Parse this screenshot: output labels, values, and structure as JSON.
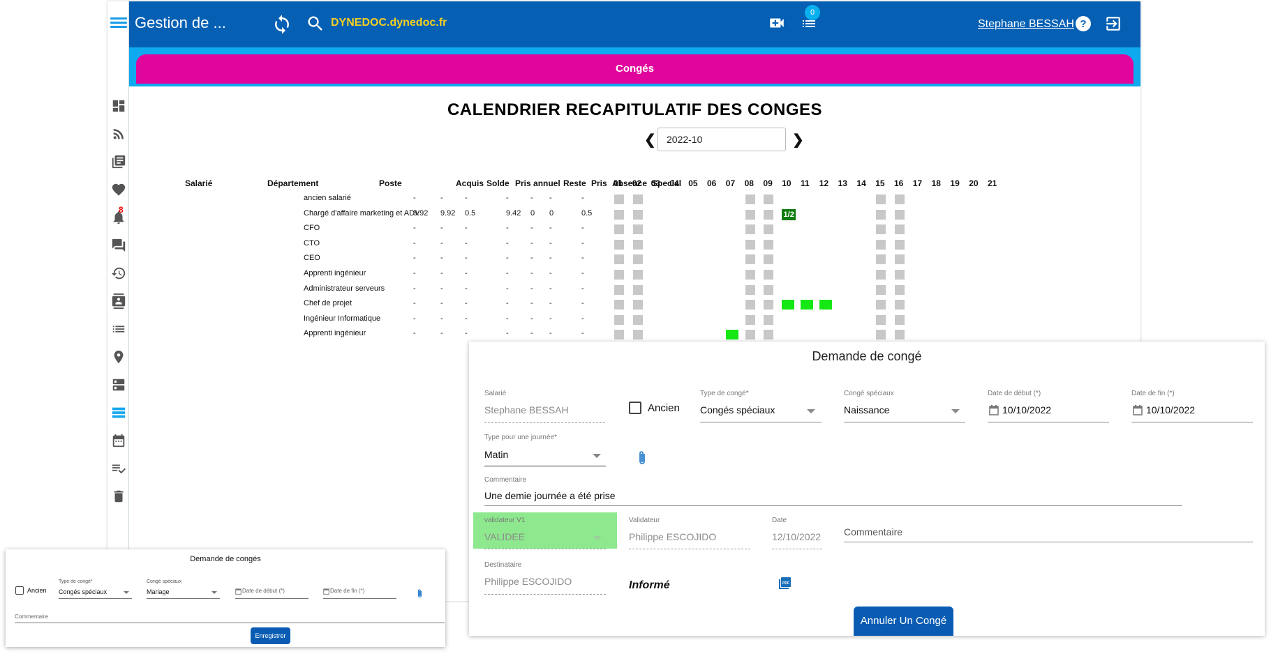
{
  "topbar": {
    "app_title": "Gestion de ...",
    "domain": "DYNEDOC.dynedoc.fr",
    "notification_count": "0",
    "user_name": "Stephane BESSAH"
  },
  "left_rail": {
    "notification_badge": "8",
    "icons": [
      "dashboard-icon",
      "rss-feed-icon",
      "library-books-icon",
      "heart-icon",
      "bell-icon",
      "forum-icon",
      "history-icon",
      "contact-card-icon",
      "list-icon",
      "location-pin-icon",
      "dns-server-icon",
      "storage-icon",
      "calendar-icon",
      "playlist-check-icon",
      "trash-icon"
    ],
    "active_icon": "storage-icon"
  },
  "conges_tab": "Congés",
  "calendar": {
    "title": "CALENDRIER RECAPITULATIF DES CONGES",
    "month": "2022-10",
    "headers": {
      "salarie": "Salarié",
      "departement": "Département",
      "poste": "Poste",
      "acquis": "Acquis",
      "solde": "Solde",
      "pris_annuel": "Pris annuel",
      "reste": "Reste",
      "pris": "Pris",
      "absence": "Absence",
      "special": "Special"
    },
    "days": [
      "01",
      "02",
      "03",
      "04",
      "05",
      "06",
      "07",
      "08",
      "09",
      "10",
      "11",
      "12",
      "13",
      "14",
      "15",
      "16",
      "17",
      "18",
      "19",
      "20",
      "21"
    ],
    "weekend_days": [
      "01",
      "02",
      "08",
      "09",
      "15",
      "16"
    ],
    "rows": [
      {
        "poste": "ancien salarié",
        "acquis": "-",
        "solde": "-",
        "pris_annuel": "-",
        "reste": "-",
        "pris": "-",
        "absence": "-",
        "special": "-",
        "leave": []
      },
      {
        "poste": "Chargé d'affaire marketing et ADV",
        "acquis": "9.92",
        "solde": "9.92",
        "pris_annuel": "0.5",
        "reste": "9.42",
        "pris": "0",
        "absence": "0",
        "special": "0.5",
        "leave": [
          {
            "day": "10",
            "kind": "half",
            "label": "1/2"
          }
        ]
      },
      {
        "poste": "CFO",
        "acquis": "-",
        "solde": "-",
        "pris_annuel": "-",
        "reste": "-",
        "pris": "-",
        "absence": "-",
        "special": "-",
        "leave": []
      },
      {
        "poste": "CTO",
        "acquis": "-",
        "solde": "-",
        "pris_annuel": "-",
        "reste": "-",
        "pris": "-",
        "absence": "-",
        "special": "-",
        "leave": []
      },
      {
        "poste": "CEO",
        "acquis": "-",
        "solde": "-",
        "pris_annuel": "-",
        "reste": "-",
        "pris": "-",
        "absence": "-",
        "special": "-",
        "leave": []
      },
      {
        "poste": "Apprenti ingénieur",
        "acquis": "-",
        "solde": "-",
        "pris_annuel": "-",
        "reste": "-",
        "pris": "-",
        "absence": "-",
        "special": "-",
        "leave": []
      },
      {
        "poste": "Administrateur serveurs",
        "acquis": "-",
        "solde": "-",
        "pris_annuel": "-",
        "reste": "-",
        "pris": "-",
        "absence": "-",
        "special": "-",
        "leave": []
      },
      {
        "poste": "Chef de projet",
        "acquis": "-",
        "solde": "-",
        "pris_annuel": "-",
        "reste": "-",
        "pris": "-",
        "absence": "-",
        "special": "-",
        "leave": [
          {
            "day": "10",
            "kind": "full"
          },
          {
            "day": "11",
            "kind": "full"
          },
          {
            "day": "12",
            "kind": "full"
          }
        ]
      },
      {
        "poste": "Ingénieur Informatique",
        "acquis": "-",
        "solde": "-",
        "pris_annuel": "-",
        "reste": "-",
        "pris": "-",
        "absence": "-",
        "special": "-",
        "leave": []
      },
      {
        "poste": "Apprenti ingénieur",
        "acquis": "-",
        "solde": "-",
        "pris_annuel": "-",
        "reste": "-",
        "pris": "-",
        "absence": "-",
        "special": "-",
        "leave": [
          {
            "day": "07",
            "kind": "full"
          }
        ]
      }
    ]
  },
  "demande_conge": {
    "title": "Demande de congé",
    "salarie_label": "Salarié",
    "salarie_value": "Stephane BESSAH",
    "ancien_label": "Ancien",
    "type_label": "Type de congé*",
    "type_value": "Congés spéciaux",
    "special_label": "Congé spéciaux",
    "special_value": "Naissance",
    "debut_label": "Date de début (*)",
    "debut_value": "10/10/2022",
    "fin_label": "Date de fin (*)",
    "fin_value": "10/10/2022",
    "journee_label": "Type pour une journée*",
    "journee_value": "Matin",
    "commentaire_label": "Commentaire",
    "commentaire_value": "Une demie journée a été prise",
    "validateur_v1_label": "validateur V1",
    "validateur_v1_value": "VALIDEE",
    "validateur_label": "Validateur",
    "validateur_value": "Philippe ESCOJIDO",
    "date_label": "Date",
    "date_value": "12/10/2022",
    "commentaire2_placeholder": "Commentaire",
    "destinataire_label": "Destinataire",
    "destinataire_value": "Philippe ESCOJIDO",
    "informe": "Informé",
    "annuler_button": "Annuler Un Congé",
    "validated_color": "#8ee88e"
  },
  "demande_conges_small": {
    "title": "Demande de congés",
    "ancien_label": "Ancien",
    "type_label": "Type de congé*",
    "type_value": "Congés spéciaux",
    "special_label": "Congé spéciaux",
    "special_value": "Mariage",
    "debut_placeholder": "Date de début (*)",
    "fin_placeholder": "Date de fin (*)",
    "commentaire_placeholder": "Commentaire",
    "save_button": "Enregistrer"
  },
  "colors": {
    "topbar": "#0560b4",
    "band": "#0ea9ee",
    "tab": "#e0059d",
    "domain_text": "#f5d020",
    "weekend_cell": "#c8c8c8",
    "leave_full": "#16e816",
    "leave_half": "#0f7d0f",
    "button": "#0a5cb3"
  }
}
